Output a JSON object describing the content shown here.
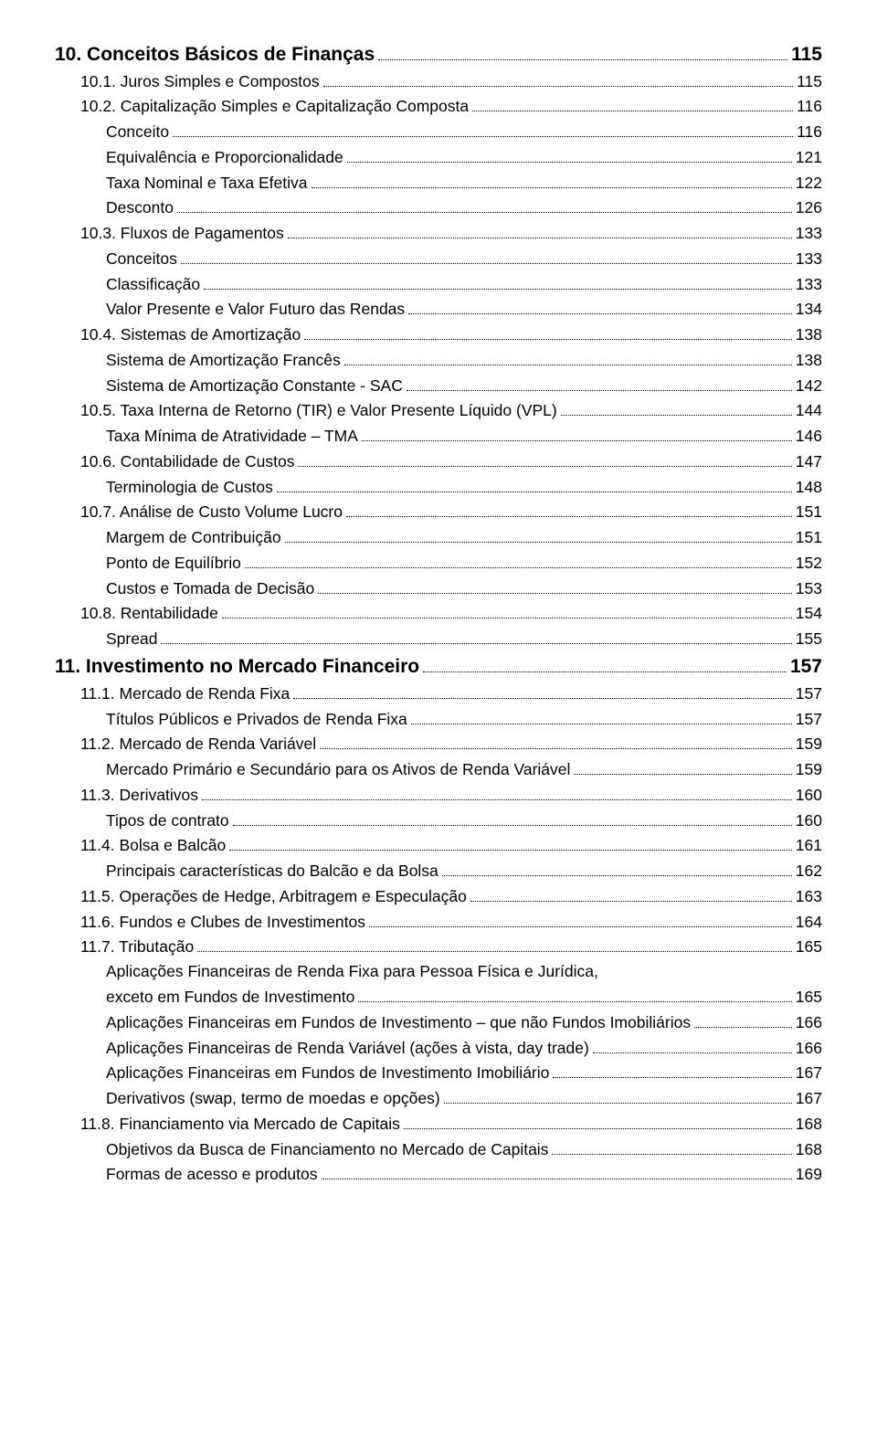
{
  "entries": [
    {
      "level": 1,
      "label": "10. Conceitos Básicos de Finanças",
      "page": "115"
    },
    {
      "level": 2,
      "label": "10.1. Juros Simples e Compostos",
      "page": "115"
    },
    {
      "level": 2,
      "label": "10.2. Capitalização Simples e Capitalização Composta",
      "page": "116"
    },
    {
      "level": 3,
      "label": "Conceito",
      "page": "116"
    },
    {
      "level": 3,
      "label": "Equivalência e Proporcionalidade",
      "page": "121"
    },
    {
      "level": 3,
      "label": "Taxa Nominal e Taxa Efetiva",
      "page": "122"
    },
    {
      "level": 3,
      "label": "Desconto",
      "page": "126"
    },
    {
      "level": 2,
      "label": "10.3. Fluxos de Pagamentos",
      "page": "133"
    },
    {
      "level": 3,
      "label": "Conceitos",
      "page": "133"
    },
    {
      "level": 3,
      "label": "Classificação",
      "page": "133"
    },
    {
      "level": 3,
      "label": "Valor Presente e Valor Futuro das Rendas",
      "page": "134"
    },
    {
      "level": 2,
      "label": "10.4. Sistemas de Amortização",
      "page": "138"
    },
    {
      "level": 3,
      "label": "Sistema de Amortização Francês",
      "page": "138"
    },
    {
      "level": 3,
      "label": "Sistema de Amortização Constante - SAC",
      "page": "142"
    },
    {
      "level": 2,
      "label": "10.5. Taxa Interna de Retorno (TIR) e Valor Presente Líquido (VPL)",
      "page": "144"
    },
    {
      "level": 3,
      "label": "Taxa Mínima de Atratividade – TMA",
      "page": "146"
    },
    {
      "level": 2,
      "label": "10.6. Contabilidade de Custos",
      "page": "147"
    },
    {
      "level": 3,
      "label": "Terminologia de Custos",
      "page": "148"
    },
    {
      "level": 2,
      "label": "10.7. Análise de Custo Volume Lucro",
      "page": "151"
    },
    {
      "level": 3,
      "label": "Margem de Contribuição",
      "page": "151"
    },
    {
      "level": 3,
      "label": "Ponto de Equilíbrio",
      "page": "152"
    },
    {
      "level": 3,
      "label": "Custos e Tomada de Decisão",
      "page": "153"
    },
    {
      "level": 2,
      "label": "10.8. Rentabilidade",
      "page": "154"
    },
    {
      "level": 3,
      "label": "Spread",
      "page": "155"
    },
    {
      "level": 1,
      "label": "11. Investimento no Mercado Financeiro",
      "page": "157"
    },
    {
      "level": 2,
      "label": "11.1. Mercado de Renda Fixa",
      "page": "157"
    },
    {
      "level": 3,
      "label": "Títulos Públicos e Privados de Renda Fixa",
      "page": "157"
    },
    {
      "level": 2,
      "label": "11.2. Mercado de Renda Variável",
      "page": "159"
    },
    {
      "level": 3,
      "label": "Mercado Primário e Secundário para os Ativos de Renda Variável",
      "page": "159"
    },
    {
      "level": 2,
      "label": "11.3. Derivativos",
      "page": "160"
    },
    {
      "level": 3,
      "label": "Tipos de contrato",
      "page": "160"
    },
    {
      "level": 2,
      "label": "11.4. Bolsa e Balcão",
      "page": "161"
    },
    {
      "level": 3,
      "label": "Principais características do Balcão e da Bolsa",
      "page": "162"
    },
    {
      "level": 2,
      "label": "11.5. Operações de Hedge, Arbitragem e Especulação",
      "page": "163"
    },
    {
      "level": 2,
      "label": "11.6. Fundos e Clubes de Investimentos",
      "page": "164"
    },
    {
      "level": 2,
      "label": "11.7. Tributação",
      "page": "165"
    },
    {
      "level": 3,
      "label": "Aplicações Financeiras de Renda Fixa para Pessoa Física e Jurídica,",
      "page": null
    },
    {
      "level": 3,
      "label": "exceto em Fundos de Investimento",
      "page": "165"
    },
    {
      "level": 3,
      "label": "Aplicações Financeiras em Fundos de Investimento – que não Fundos Imobiliários",
      "page": "166"
    },
    {
      "level": 3,
      "label": "Aplicações Financeiras de Renda Variável (ações à vista, day trade)",
      "page": "166"
    },
    {
      "level": 3,
      "label": "Aplicações Financeiras em Fundos de Investimento Imobiliário",
      "page": "167"
    },
    {
      "level": 3,
      "label": "Derivativos (swap, termo de moedas e opções)",
      "page": "167"
    },
    {
      "level": 2,
      "label": "11.8. Financiamento via Mercado de Capitais",
      "page": "168"
    },
    {
      "level": 3,
      "label": "Objetivos da Busca de Financiamento no Mercado de Capitais",
      "page": "168"
    },
    {
      "level": 3,
      "label": "Formas de acesso e produtos",
      "page": "169"
    }
  ]
}
